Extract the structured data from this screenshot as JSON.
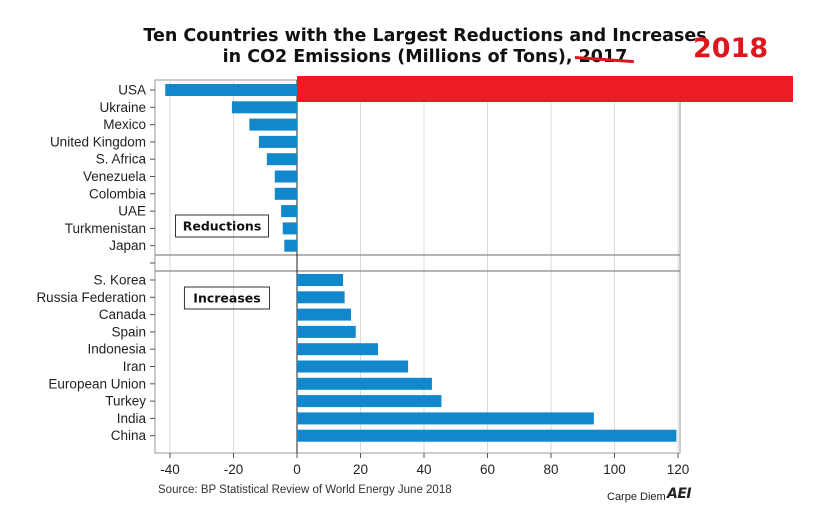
{
  "title": {
    "line1": "Ten Countries with the Largest Reductions and Increases",
    "line2_prefix": "in CO2 Emissions (Millions of Tons), ",
    "struck_year": "2017",
    "correction_year": "2018"
  },
  "source": "Source: BP Statistical Review of World Energy June 2018",
  "brand": {
    "name": "Carpe Diem",
    "logo_text": "AEI"
  },
  "colors": {
    "bar": "#1187cc",
    "redaction": "#ed1c24",
    "annotation": "#e0161e",
    "grid": "#d9d9d9",
    "axis": "#555555"
  },
  "chart_data": {
    "type": "bar",
    "orientation": "horizontal",
    "xlim": [
      -45,
      122
    ],
    "xticks": [
      -40,
      -20,
      0,
      20,
      40,
      60,
      80,
      100,
      120
    ],
    "grid": true,
    "groups": [
      {
        "label": "Reductions",
        "categories": [
          "USA",
          "Ukraine",
          "Mexico",
          "United Kingdom",
          "S. Africa",
          "Venezuela",
          "Colombia",
          "UAE",
          "Turkmenistan",
          "Japan"
        ],
        "values": [
          -41.5,
          -20.5,
          -15,
          -12,
          -9.5,
          -7,
          -7,
          -5,
          -4.5,
          -4
        ]
      },
      {
        "label": "Increases",
        "categories": [
          "S. Korea",
          "Russia Federation",
          "Canada",
          "Spain",
          "Indonesia",
          "Iran",
          "European Union",
          "Turkey",
          "India",
          "China"
        ],
        "values": [
          14.5,
          15,
          17,
          18.5,
          25.5,
          35,
          42.5,
          45.5,
          93.5,
          119.5
        ]
      }
    ],
    "overlay": {
      "label": "USA 2018 increase (redacted bar)",
      "category": "USA"
    }
  }
}
